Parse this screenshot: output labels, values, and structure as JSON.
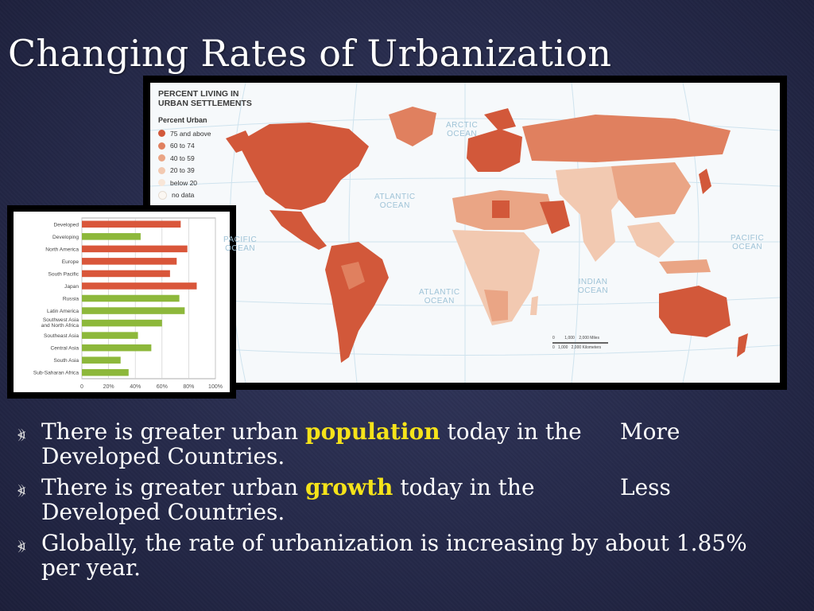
{
  "slide": {
    "title": "Changing Rates of Urbanization"
  },
  "map": {
    "title": "PERCENT LIVING IN\nURBAN SETTLEMENTS",
    "legend_title": "Percent Urban",
    "legend": [
      {
        "label": "75 and above",
        "color": "#d2583a"
      },
      {
        "label": "60 to 74",
        "color": "#e0805f"
      },
      {
        "label": "40 to 59",
        "color": "#eaa585"
      },
      {
        "label": "20 to 39",
        "color": "#f2c9b1"
      },
      {
        "label": "below 20",
        "color": "#f8e6d8"
      },
      {
        "label": "no data",
        "color": "#fbf7f2"
      }
    ],
    "oceans": [
      {
        "id": "arctic",
        "label": "ARCTIC\nOCEAN"
      },
      {
        "id": "atlantic-north",
        "label": "ATLANTIC\nOCEAN"
      },
      {
        "id": "pacific-west",
        "label": "PACIFIC\nOCEAN"
      },
      {
        "id": "pacific-east",
        "label": "PACIFIC\nOCEAN"
      },
      {
        "id": "atlantic-south",
        "label": "ATLANTIC\nOCEAN"
      },
      {
        "id": "indian",
        "label": "INDIAN\nOCEAN"
      }
    ],
    "scale": {
      "miles_zero": "0",
      "miles_mid": "1,000",
      "miles_end": "2,000 Miles",
      "km_zero": "0",
      "km_mid": "1,000",
      "km_end": "2,000 Kilometers"
    }
  },
  "chart_data": {
    "type": "bar",
    "orientation": "horizontal",
    "categories": [
      "Developed",
      "Developing",
      "North America",
      "Europe",
      "South Pacific",
      "Japan",
      "Russia",
      "Latin America",
      "Southwest Asia and North Africa",
      "Southeast Asia",
      "Central Asia",
      "South Asia",
      "Sub-Saharan Africa"
    ],
    "values": [
      74,
      44,
      79,
      71,
      66,
      86,
      73,
      77,
      60,
      42,
      52,
      29,
      35
    ],
    "bar_colors": [
      "#d9563a",
      "#8db83b",
      "#d9563a",
      "#d9563a",
      "#d9563a",
      "#d9563a",
      "#8db83b",
      "#8db83b",
      "#8db83b",
      "#8db83b",
      "#8db83b",
      "#8db83b",
      "#8db83b"
    ],
    "x_ticks": [
      "0",
      "20%",
      "40%",
      "60%",
      "80%",
      "100%"
    ],
    "xlim": [
      0,
      100
    ],
    "grid": true,
    "title": "",
    "xlabel": "",
    "ylabel": ""
  },
  "bullets": {
    "icon": "⦖",
    "b1": {
      "pre": "There is greater urban ",
      "hl": "population",
      "post": " today in the",
      "right": "More",
      "line2": "Developed Countries."
    },
    "b2": {
      "pre": "There is greater urban ",
      "hl": "growth",
      "post": " today in the",
      "right": "Less",
      "line2": "Developed Countries."
    },
    "b3": {
      "text": "Globally, the rate of urbanization is increasing by about 1.85%",
      "line2": "per year."
    }
  }
}
